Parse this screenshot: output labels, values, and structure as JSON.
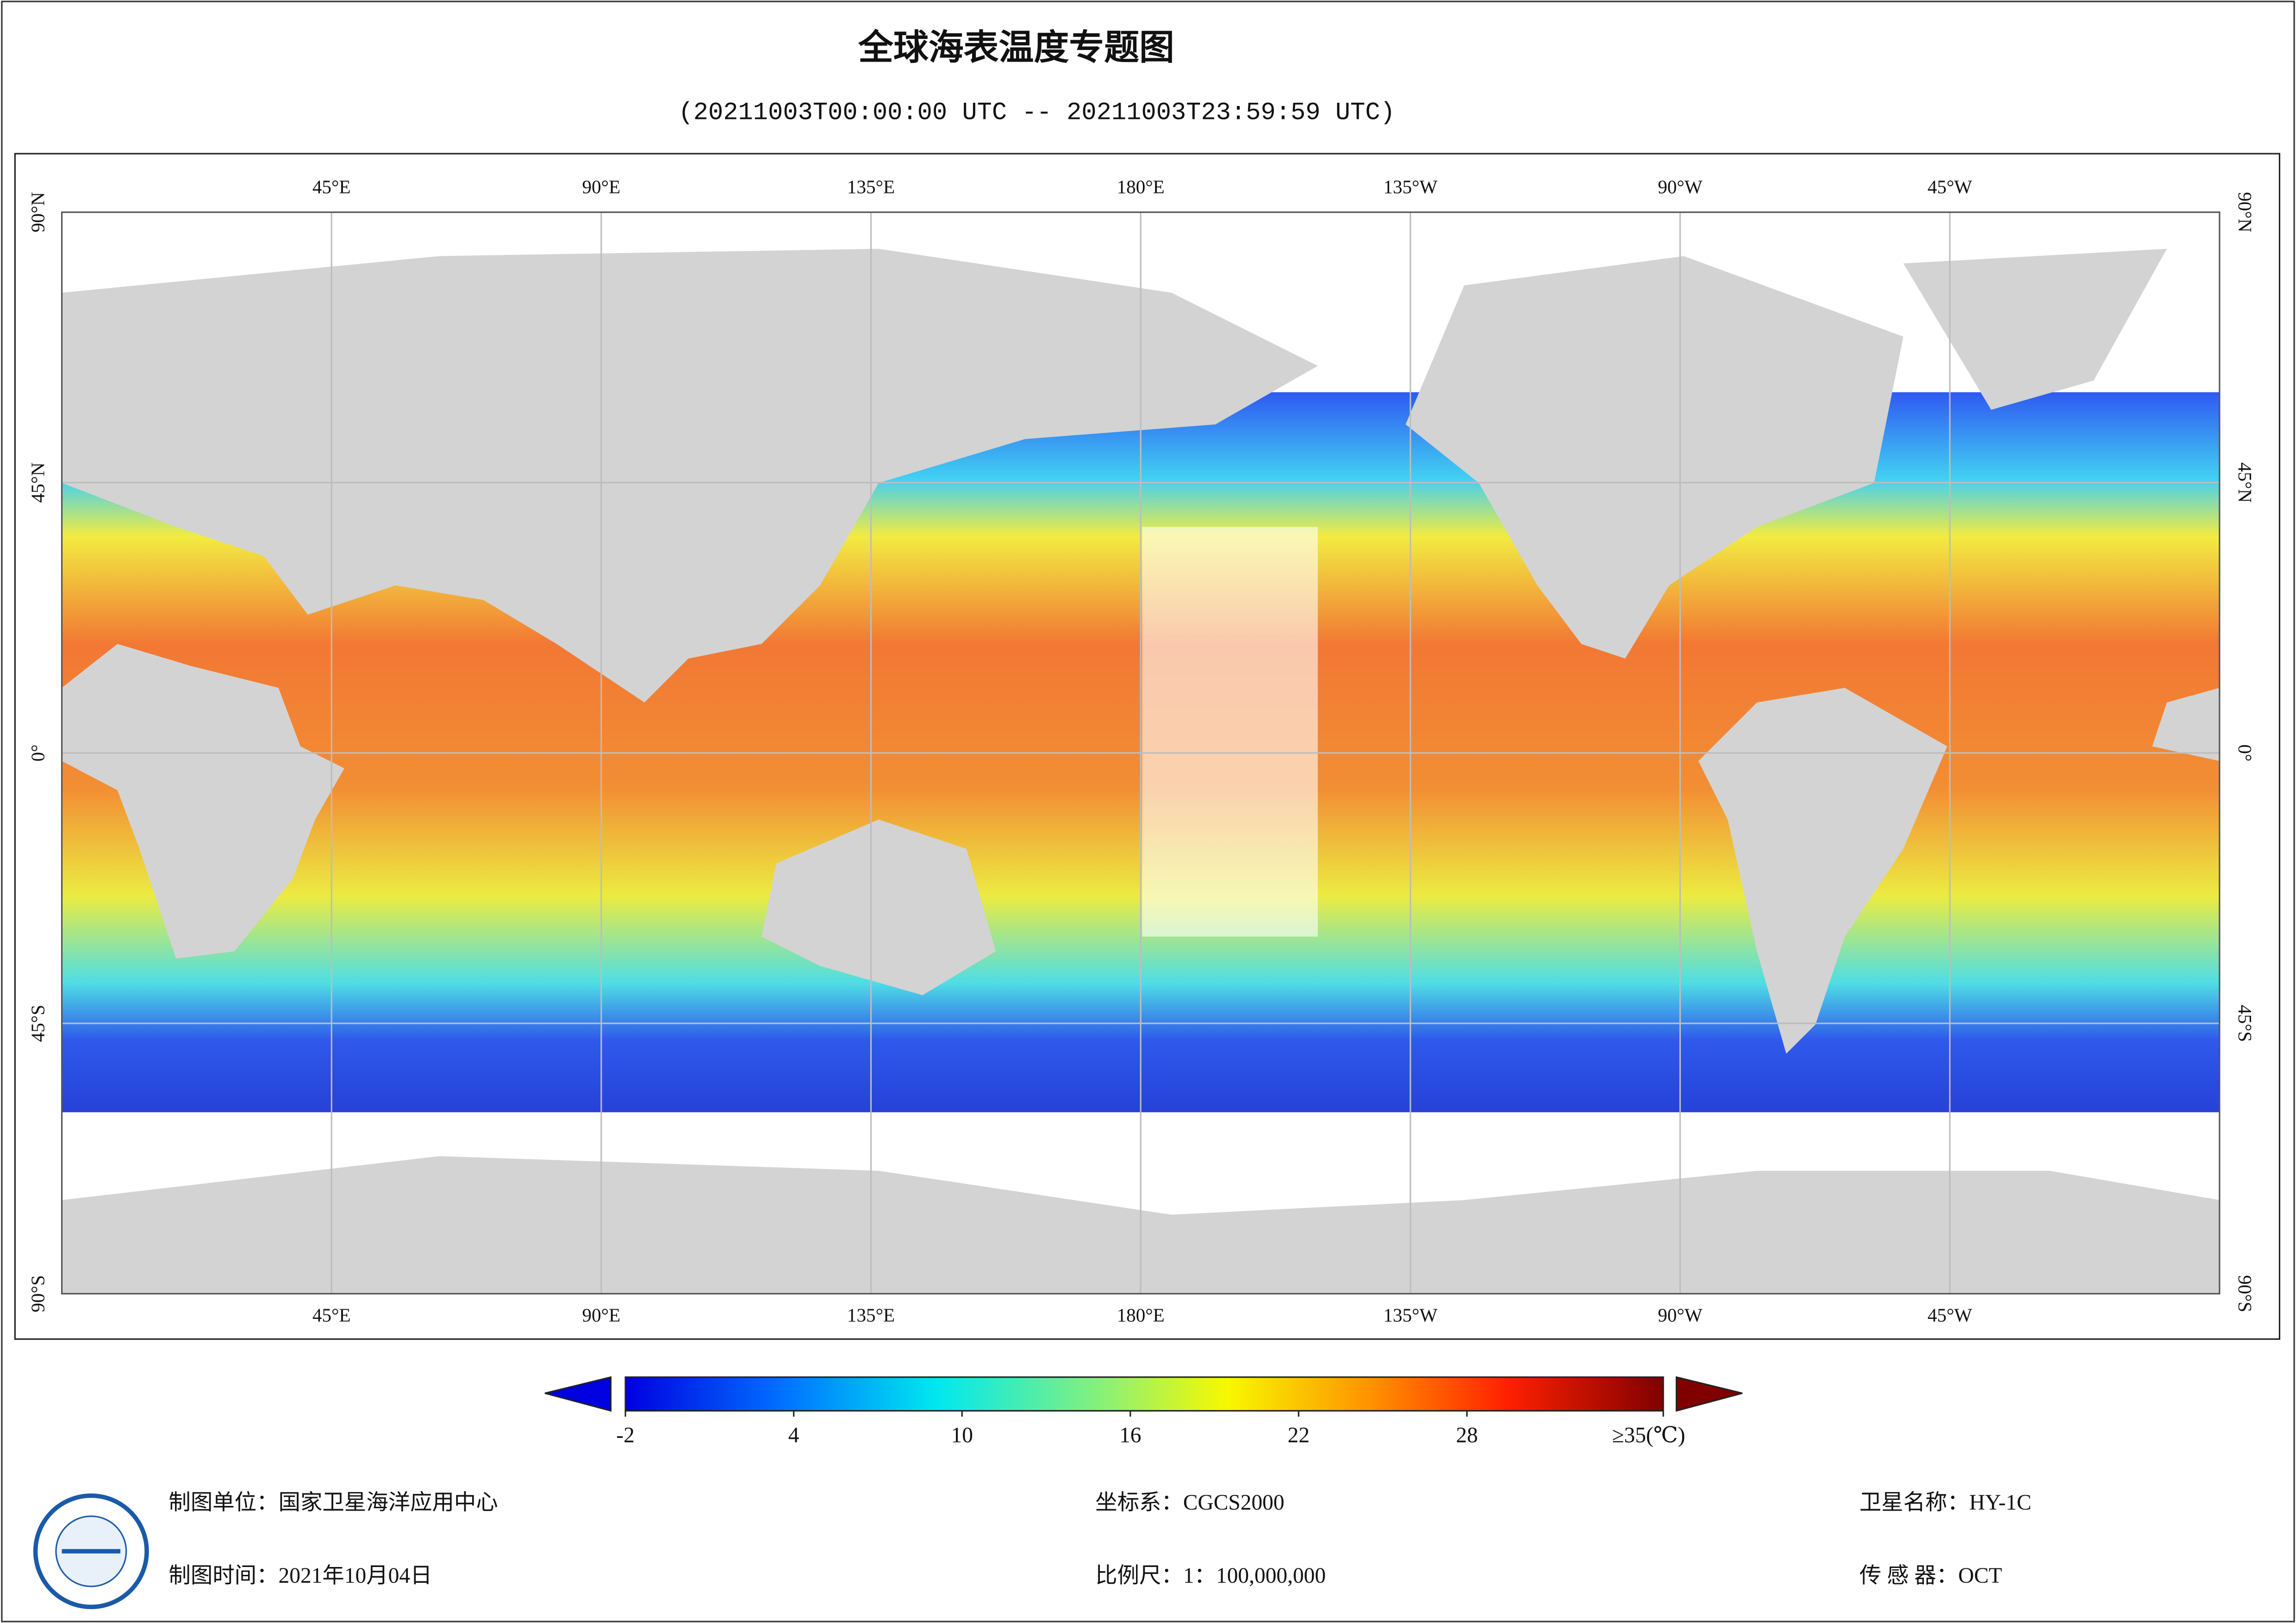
{
  "header": {
    "title": "全球海表温度专题图",
    "subtitle": "(20211003T00:00:00 UTC -- 20211003T23:59:59 UTC)"
  },
  "map": {
    "xlim": [
      0,
      360
    ],
    "ylim": [
      -90,
      90
    ],
    "lon_ticks": [
      {
        "value": 45,
        "label": "45°E"
      },
      {
        "value": 90,
        "label": "90°E"
      },
      {
        "value": 135,
        "label": "135°E"
      },
      {
        "value": 180,
        "label": "180°E"
      },
      {
        "value": 225,
        "label": "135°W"
      },
      {
        "value": 270,
        "label": "90°W"
      },
      {
        "value": 315,
        "label": "45°W"
      }
    ],
    "lat_ticks": [
      {
        "value": 90,
        "label": "90°N"
      },
      {
        "value": 45,
        "label": "45°N"
      },
      {
        "value": 0,
        "label": "0°"
      },
      {
        "value": -45,
        "label": "45°S"
      },
      {
        "value": -90,
        "label": "90°S"
      }
    ]
  },
  "colorbar": {
    "lim": [
      -2,
      35
    ],
    "ticks": [
      -2,
      4,
      10,
      16,
      22,
      28,
      {
        "value": 35,
        "label": "≥35(℃)"
      }
    ]
  },
  "footer": [
    {
      "label": "制图单位：",
      "value": "国家卫星海洋应用中心"
    },
    {
      "label": "制图时间：",
      "value": "2021年10月04日"
    },
    {
      "label": "坐标系：",
      "value": "CGCS2000"
    },
    {
      "label": "比例尺：",
      "value": "1：100,000,000"
    },
    {
      "label": "卫星名称：",
      "value": "HY-1C"
    },
    {
      "label": "传 感 器：",
      "value": "OCT"
    }
  ]
}
